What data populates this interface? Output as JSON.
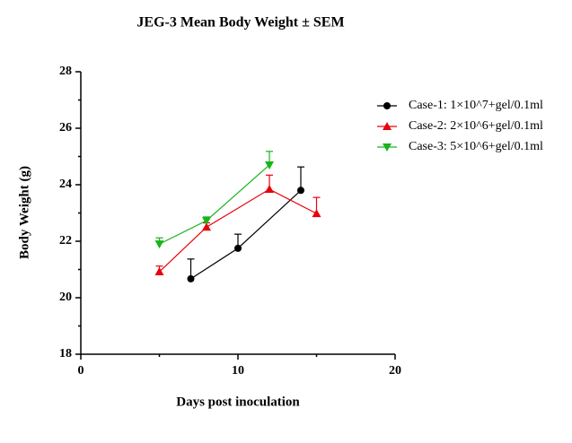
{
  "chart_data": {
    "type": "line",
    "title": "JEG-3 Mean Body Weight ± SEM",
    "xlabel": "Days post inoculation",
    "ylabel": "Body Weight (g)",
    "xlim": [
      0,
      20
    ],
    "xticks": [
      0,
      10,
      20
    ],
    "xminorticks": [
      5,
      15
    ],
    "ylim": [
      18,
      28
    ],
    "yticks": [
      18,
      20,
      22,
      24,
      26,
      28
    ],
    "yminorticks": [
      19,
      21,
      23,
      25,
      27
    ],
    "legend": "upper right",
    "series": [
      {
        "name": "Case-1: 1×10^7+gel/0.1ml",
        "color": "#000000",
        "marker": "circle",
        "x": [
          7,
          10,
          14
        ],
        "values": [
          20.67,
          21.75,
          23.8
        ],
        "errors": [
          0.7,
          0.5,
          0.83
        ]
      },
      {
        "name": "Case-2: 2×10^6+gel/0.1ml",
        "color": "#e8000b",
        "marker": "triangle-up",
        "x": [
          5,
          8,
          12,
          15
        ],
        "values": [
          20.92,
          22.5,
          23.84,
          22.98
        ],
        "errors": [
          0.2,
          0.15,
          0.5,
          0.57
        ]
      },
      {
        "name": "Case-3: 5×10^6+gel/0.1ml",
        "color": "#1ab31a",
        "marker": "triangle-down",
        "x": [
          5,
          8,
          12
        ],
        "values": [
          21.9,
          22.73,
          24.7
        ],
        "errors": [
          0.22,
          0.13,
          0.48
        ]
      }
    ]
  }
}
